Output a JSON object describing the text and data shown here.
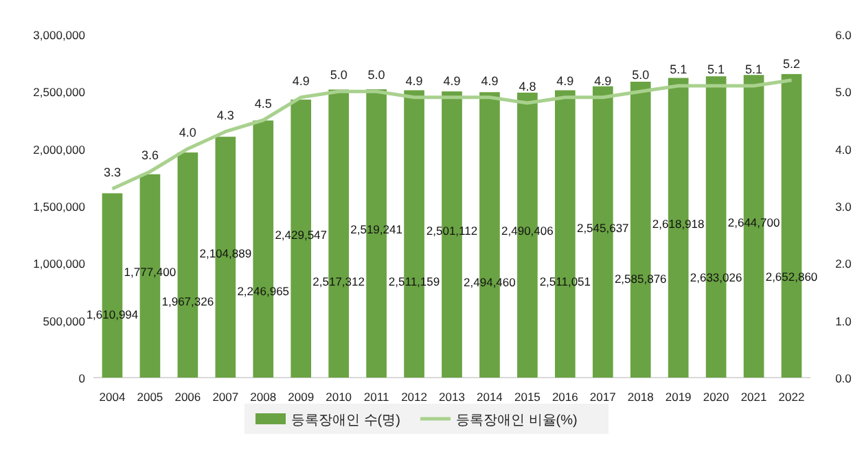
{
  "chart_data": {
    "type": "bar",
    "categories": [
      "2004",
      "2005",
      "2006",
      "2007",
      "2008",
      "2009",
      "2010",
      "2011",
      "2012",
      "2013",
      "2014",
      "2015",
      "2016",
      "2017",
      "2018",
      "2019",
      "2020",
      "2021",
      "2022"
    ],
    "series": [
      {
        "name": "등록장애인 수(명)",
        "color": "#6aa343",
        "values": [
          1610994,
          1777400,
          1967326,
          2104889,
          2246965,
          2429547,
          2517312,
          2519241,
          2511159,
          2501112,
          2494460,
          2490406,
          2511051,
          2545637,
          2585876,
          2618918,
          2633026,
          2644700,
          2652860
        ],
        "value_labels": [
          "1,610,994",
          "1,777,400",
          "1,967,326",
          "2,104,889",
          "2,246,965",
          "2,429,547",
          "2,517,312",
          "2,519,241",
          "2,511,159",
          "2,501,112",
          "2,494,460",
          "2,490,406",
          "2,511,051",
          "2,545,637",
          "2,585,876",
          "2,618,918",
          "2,633,026",
          "2,644,700",
          "2,652,860"
        ]
      },
      {
        "name": "등록장애인 비율(%)",
        "type": "line",
        "axis": "y2",
        "color": "#a9d18e",
        "values": [
          3.3,
          3.6,
          4.0,
          4.3,
          4.5,
          4.9,
          5.0,
          5.0,
          4.9,
          4.9,
          4.9,
          4.8,
          4.9,
          4.9,
          5.0,
          5.1,
          5.1,
          5.1,
          5.2
        ],
        "value_labels": [
          "3.3",
          "3.6",
          "4.0",
          "4.3",
          "4.5",
          "4.9",
          "5.0",
          "5.0",
          "4.9",
          "4.9",
          "4.9",
          "4.8",
          "4.9",
          "4.9",
          "5.0",
          "5.1",
          "5.1",
          "5.1",
          "5.2"
        ]
      }
    ],
    "ylim": [
      0,
      3000000
    ],
    "yticks": [
      {
        "value": 0,
        "label": "0"
      },
      {
        "value": 500000,
        "label": "500,000"
      },
      {
        "value": 1000000,
        "label": "1,000,000"
      },
      {
        "value": 1500000,
        "label": "1,500,000"
      },
      {
        "value": 2000000,
        "label": "2,000,000"
      },
      {
        "value": 2500000,
        "label": "2,500,000"
      },
      {
        "value": 3000000,
        "label": "3,000,000"
      }
    ],
    "y2lim": [
      0,
      6
    ],
    "y2ticks": [
      {
        "value": 0,
        "label": "0.0"
      },
      {
        "value": 1,
        "label": "1.0"
      },
      {
        "value": 2,
        "label": "2.0"
      },
      {
        "value": 3,
        "label": "3.0"
      },
      {
        "value": 4,
        "label": "4.0"
      },
      {
        "value": 5,
        "label": "5.0"
      },
      {
        "value": 6,
        "label": "6.0"
      }
    ],
    "legend": "bottom",
    "grid": false,
    "marker": "none"
  }
}
